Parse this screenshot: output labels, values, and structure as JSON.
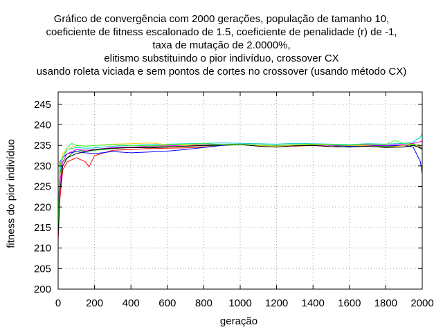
{
  "chart_data": {
    "type": "line",
    "title_lines": [
      "Gráfico de convergência com 2000 gerações, população de tamanho 10,",
      "coeficiente de fitness escalonado de 1.5, coeficiente de penalidade (r) de -1,",
      "taxa de mutação de 2.0000%,",
      "elitismo substituindo o pior indivíduo, crossover CX",
      "usando roleta viciada e sem pontos de cortes no crossover (usando método CX)"
    ],
    "xlabel": "geração",
    "ylabel": "fitness do pior indivíduo",
    "xlim": [
      0,
      2000
    ],
    "ylim": [
      200,
      248
    ],
    "xticks": [
      0,
      200,
      400,
      600,
      800,
      1000,
      1200,
      1400,
      1600,
      1800,
      2000
    ],
    "yticks": [
      200,
      205,
      210,
      215,
      220,
      225,
      230,
      235,
      240,
      245
    ],
    "grid": true,
    "legend": "none",
    "series": [
      {
        "color": "#ff0000",
        "x": [
          0,
          10,
          25,
          50,
          100,
          150,
          170,
          200,
          300,
          400,
          500,
          600,
          700,
          800,
          900,
          1000,
          1100,
          1200,
          1300,
          1400,
          1500,
          1600,
          1700,
          1800,
          1900,
          1950,
          2000
        ],
        "y": [
          212,
          222,
          229,
          231,
          232,
          231,
          229.8,
          232.5,
          233.8,
          234,
          234.2,
          234.3,
          234.4,
          234.6,
          235,
          235.2,
          234.9,
          235,
          234.8,
          235,
          234.7,
          235,
          234.8,
          234.6,
          235,
          235.4,
          234.5
        ]
      },
      {
        "color": "#00aa00",
        "x": [
          0,
          10,
          25,
          50,
          100,
          150,
          200,
          300,
          400,
          500,
          600,
          700,
          800,
          900,
          1000,
          1100,
          1200,
          1300,
          1400,
          1500,
          1600,
          1700,
          1800,
          1900,
          1950,
          2000
        ],
        "y": [
          214,
          228,
          231,
          232,
          234,
          233.5,
          233.8,
          234.2,
          234.5,
          234.6,
          234.7,
          234.8,
          234.9,
          235,
          235.2,
          235,
          234.9,
          235,
          235.1,
          235,
          234.8,
          235,
          234.7,
          234.9,
          235.2,
          234
        ]
      },
      {
        "color": "#0000ff",
        "x": [
          0,
          10,
          25,
          50,
          100,
          150,
          200,
          300,
          400,
          500,
          600,
          700,
          800,
          900,
          1000,
          1100,
          1200,
          1300,
          1400,
          1500,
          1600,
          1700,
          1800,
          1900,
          1950,
          1990,
          2000
        ],
        "y": [
          216,
          231,
          232,
          233,
          233.5,
          233.2,
          233,
          233.5,
          233.2,
          233.4,
          233.6,
          234,
          234.5,
          235,
          235.3,
          235.1,
          235,
          234.9,
          235.2,
          235,
          234.8,
          235,
          234.9,
          235,
          234.6,
          231,
          228
        ]
      },
      {
        "color": "#ff00ff",
        "x": [
          0,
          10,
          25,
          50,
          100,
          150,
          200,
          300,
          400,
          500,
          600,
          700,
          800,
          900,
          1000,
          1100,
          1200,
          1300,
          1400,
          1500,
          1600,
          1700,
          1800,
          1900,
          1950,
          2000
        ],
        "y": [
          213,
          226,
          231,
          233,
          234,
          233.8,
          234,
          234.5,
          234.6,
          234.8,
          234.9,
          235,
          235.1,
          235.2,
          235.3,
          235.1,
          235,
          235.2,
          235.1,
          235,
          235.2,
          235.1,
          235,
          235.3,
          235.5,
          236
        ]
      },
      {
        "color": "#00cccc",
        "x": [
          0,
          10,
          25,
          50,
          100,
          150,
          200,
          300,
          400,
          500,
          600,
          700,
          800,
          900,
          1000,
          1100,
          1200,
          1300,
          1400,
          1500,
          1600,
          1700,
          1800,
          1900,
          1950,
          1990,
          2000
        ],
        "y": [
          215,
          229,
          232,
          234,
          234.5,
          234.3,
          234.4,
          234.8,
          235,
          235.2,
          235.3,
          235.4,
          235.5,
          235.6,
          235.5,
          235.4,
          235.3,
          235.5,
          235.4,
          235.3,
          235.2,
          235.4,
          235.3,
          235.5,
          235.8,
          237,
          238
        ]
      },
      {
        "color": "#ffcc00",
        "x": [
          0,
          10,
          25,
          50,
          100,
          150,
          200,
          300,
          400,
          500,
          600,
          700,
          800,
          900,
          1000,
          1100,
          1200,
          1300,
          1400,
          1500,
          1600,
          1700,
          1800,
          1900,
          1950,
          2000
        ],
        "y": [
          214,
          230,
          233,
          234,
          235,
          234.8,
          235,
          235.3,
          235.4,
          235.6,
          235.2,
          235,
          235.4,
          235.2,
          235.3,
          235,
          234.8,
          235,
          235.2,
          235.1,
          235,
          234.9,
          234.5,
          235,
          235.3,
          235
        ]
      },
      {
        "color": "#000000",
        "x": [
          0,
          10,
          25,
          50,
          100,
          150,
          200,
          300,
          400,
          500,
          600,
          700,
          800,
          900,
          1000,
          1100,
          1200,
          1300,
          1400,
          1500,
          1600,
          1700,
          1800,
          1900,
          1950,
          2000
        ],
        "y": [
          213,
          224,
          230,
          232,
          233,
          233.5,
          234,
          234.3,
          234.5,
          234.4,
          234.6,
          234.8,
          235,
          235.1,
          235.2,
          234.8,
          234.6,
          234.9,
          235,
          234.7,
          234.6,
          234.8,
          234.5,
          234.6,
          235,
          234.2
        ]
      },
      {
        "color": "#33ff33",
        "x": [
          0,
          10,
          25,
          50,
          75,
          100,
          150,
          200,
          300,
          400,
          500,
          600,
          700,
          800,
          900,
          1000,
          1100,
          1200,
          1300,
          1400,
          1500,
          1600,
          1700,
          1800,
          1850,
          1900,
          2000
        ],
        "y": [
          215,
          230,
          232,
          234.5,
          235.5,
          235,
          234.8,
          235,
          235.2,
          235,
          234.9,
          235.1,
          235.3,
          235.4,
          235.2,
          235.3,
          235.1,
          235,
          235.2,
          235.3,
          235.2,
          235.1,
          235.3,
          235.2,
          236.2,
          235.5,
          235
        ]
      }
    ]
  }
}
